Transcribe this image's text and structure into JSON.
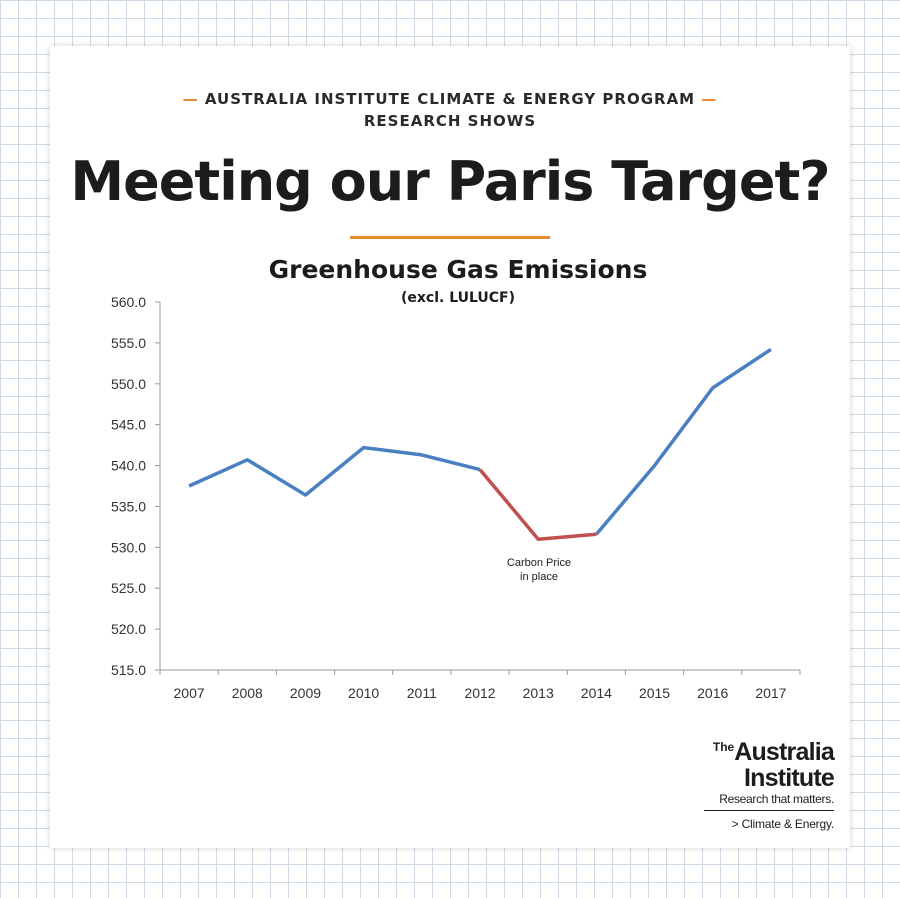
{
  "header": {
    "kicker_line1": "AUSTRALIA INSTITUTE CLIMATE & ENERGY PROGRAM",
    "kicker_line2": "RESEARCH SHOWS",
    "dash": "—",
    "headline": "Meeting our Paris Target?"
  },
  "colors": {
    "accent": "#e8872b",
    "series_main": "#4a7fc1",
    "series_highlight": "#c0504d",
    "grid": "#cfd9e6"
  },
  "chart_data": {
    "type": "line",
    "title": "Greenhouse Gas Emissions",
    "subtitle": "(excl. LULUCF)",
    "categories": [
      "2007",
      "2008",
      "2009",
      "2010",
      "2011",
      "2012",
      "2013",
      "2014",
      "2015",
      "2016",
      "2017"
    ],
    "values": [
      537.5,
      540.7,
      536.4,
      542.2,
      541.3,
      539.5,
      531.0,
      531.6,
      540.0,
      549.5,
      554.2
    ],
    "highlight": {
      "label": "Carbon Price in place",
      "start": "2012",
      "end": "2014"
    },
    "annotation_lines": [
      "Carbon Price",
      "in place"
    ],
    "ylim": [
      515.0,
      560.0
    ],
    "yticks": [
      "515.0",
      "520.0",
      "525.0",
      "530.0",
      "535.0",
      "540.0",
      "545.0",
      "550.0",
      "555.0",
      "560.0"
    ],
    "xlabel": "",
    "ylabel": "",
    "grid": false,
    "legend": false
  },
  "logo": {
    "the": "The",
    "line1": "Australia",
    "line2": "Institute",
    "tagline": "Research that matters.",
    "program": "> Climate & Energy."
  }
}
